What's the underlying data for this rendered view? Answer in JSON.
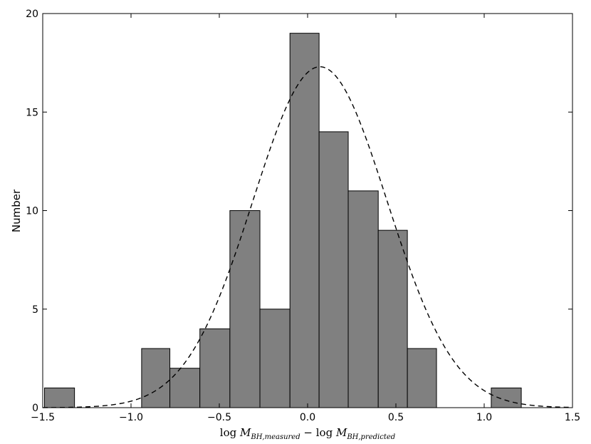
{
  "chart_data": {
    "type": "bar",
    "subtype": "histogram",
    "bins": [
      {
        "x0": -1.49,
        "x1": -1.32,
        "count": 1
      },
      {
        "x0": -0.94,
        "x1": -0.78,
        "count": 3
      },
      {
        "x0": -0.78,
        "x1": -0.61,
        "count": 2
      },
      {
        "x0": -0.61,
        "x1": -0.44,
        "count": 4
      },
      {
        "x0": -0.44,
        "x1": -0.27,
        "count": 10
      },
      {
        "x0": -0.27,
        "x1": -0.1,
        "count": 5
      },
      {
        "x0": -0.1,
        "x1": 0.065,
        "count": 19
      },
      {
        "x0": 0.065,
        "x1": 0.23,
        "count": 14
      },
      {
        "x0": 0.23,
        "x1": 0.4,
        "count": 11
      },
      {
        "x0": 0.4,
        "x1": 0.565,
        "count": 9
      },
      {
        "x0": 0.565,
        "x1": 0.73,
        "count": 3
      },
      {
        "x0": 1.04,
        "x1": 1.21,
        "count": 1
      }
    ],
    "bar_color": "#808080",
    "curve": {
      "style": "dashed",
      "shape": "gaussian",
      "mean": 0.07,
      "sigma": 0.38,
      "peak": 17.3
    },
    "xlim": [
      -1.5,
      1.5
    ],
    "ylim": [
      0,
      20
    ],
    "xticks": [
      -1.5,
      -1.0,
      -0.5,
      0.0,
      0.5,
      1.0,
      1.5
    ],
    "xtick_labels": [
      "−1.5",
      "−1.0",
      "−0.5",
      "0.0",
      "0.5",
      "1.0",
      "1.5"
    ],
    "yticks": [
      0,
      5,
      10,
      15,
      20
    ],
    "ytick_labels": [
      "0",
      "5",
      "10",
      "15",
      "20"
    ],
    "ylabel": "Number",
    "xlabel": {
      "log1": "log ",
      "m1": "M",
      "sub1": "BH,measured",
      "minus": " − log ",
      "m2": "M",
      "sub2": "BH,predicted"
    },
    "grid": false
  }
}
